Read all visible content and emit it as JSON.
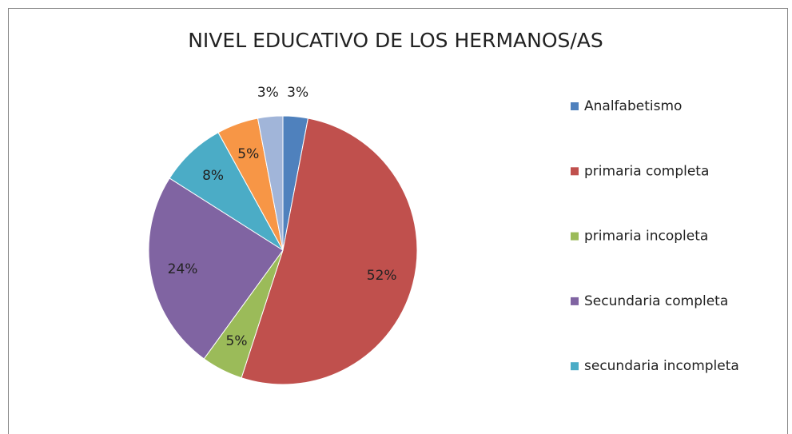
{
  "chart_data": {
    "type": "pie",
    "title": "NIVEL EDUCATIVO DE LOS HERMANOS/AS",
    "categories": [
      "Analfabetismo",
      "primaria completa",
      "primaria incopleta",
      "Secundaria completa",
      "secundaria incompleta",
      null,
      null
    ],
    "values": [
      3,
      52,
      5,
      24,
      8,
      5,
      3
    ],
    "value_labels": [
      "3%",
      "52%",
      "5%",
      "24%",
      "8%",
      "5%",
      "3%"
    ],
    "colors": [
      "#4f81bd",
      "#c0504d",
      "#9bbb59",
      "#8064a2",
      "#4bacc6",
      "#f79646",
      "#a1b5d9"
    ],
    "legend": "right"
  }
}
